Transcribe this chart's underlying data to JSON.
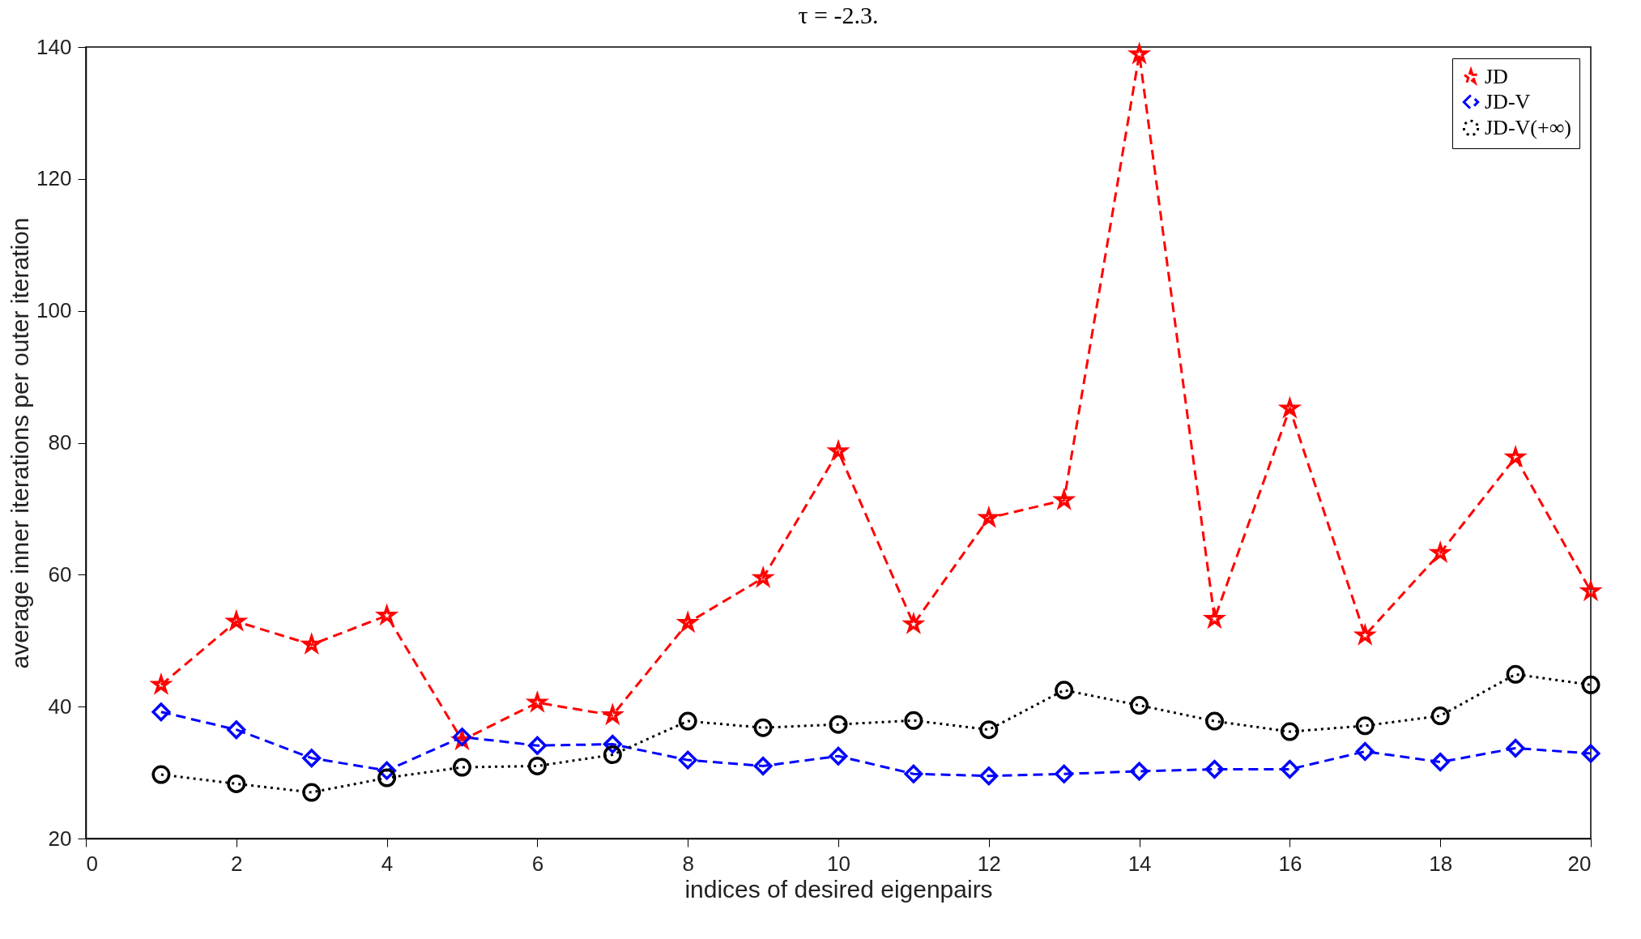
{
  "chart_data": {
    "type": "line",
    "title": "τ = -2.3.",
    "xlabel": "indices of desired eigenpairs",
    "ylabel": "average inner iterations per outer iteration",
    "x": [
      1,
      2,
      3,
      4,
      5,
      6,
      7,
      8,
      9,
      10,
      11,
      12,
      13,
      14,
      15,
      16,
      17,
      18,
      19,
      20
    ],
    "xlim": [
      0,
      20
    ],
    "xticks": [
      0,
      2,
      4,
      6,
      8,
      10,
      12,
      14,
      16,
      18,
      20
    ],
    "ylim": [
      20,
      140
    ],
    "yticks": [
      20,
      40,
      60,
      80,
      100,
      120,
      140
    ],
    "grid": false,
    "legend": "top right",
    "series": [
      {
        "name": "JD",
        "color": "#ff0000",
        "marker": "star",
        "line_style": "dashed",
        "values": [
          43.3,
          52.9,
          49.4,
          53.8,
          34.9,
          40.6,
          38.7,
          52.7,
          59.5,
          78.7,
          52.5,
          68.6,
          71.3,
          138.9,
          53.3,
          85.2,
          50.8,
          63.3,
          77.8,
          57.5
        ]
      },
      {
        "name": "JD-V",
        "color": "#0000ff",
        "marker": "diamond",
        "line_style": "dashed",
        "values": [
          39.2,
          36.5,
          32.2,
          30.3,
          35.4,
          34.1,
          34.3,
          31.9,
          31.0,
          32.5,
          29.8,
          29.5,
          29.8,
          30.2,
          30.5,
          30.5,
          33.2,
          31.6,
          33.7,
          32.9
        ]
      },
      {
        "name": "JD-V(+∞)",
        "color": "#000000",
        "marker": "circle",
        "line_style": "dotted",
        "values": [
          29.7,
          28.3,
          27.0,
          29.2,
          30.8,
          31.0,
          32.7,
          37.8,
          36.8,
          37.3,
          37.9,
          36.5,
          42.5,
          40.2,
          37.8,
          36.2,
          37.1,
          38.6,
          44.9,
          43.3
        ]
      }
    ]
  }
}
